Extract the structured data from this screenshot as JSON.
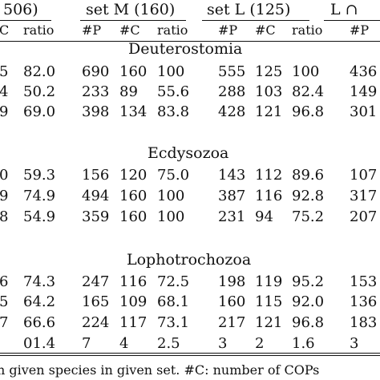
{
  "header": {
    "groups": [
      {
        "label": "506)"
      },
      {
        "label": "set M (160)"
      },
      {
        "label": "set L (125)"
      },
      {
        "label": "L ∩"
      }
    ],
    "subheaders": [
      "C",
      "ratio",
      "#P",
      "#C",
      "ratio",
      "#P",
      "#C",
      "ratio",
      "#P"
    ]
  },
  "sections": [
    {
      "name": "Deuterostomia",
      "rows": [
        [
          "5",
          "82.0",
          "690",
          "160",
          "100",
          "555",
          "125",
          "100",
          "436"
        ],
        [
          "4",
          "50.2",
          "233",
          "89",
          "55.6",
          "288",
          "103",
          "82.4",
          "149"
        ],
        [
          "9",
          "69.0",
          "398",
          "134",
          "83.8",
          "428",
          "121",
          "96.8",
          "301"
        ]
      ]
    },
    {
      "name": "Ecdysozoa",
      "rows": [
        [
          "0",
          "59.3",
          "156",
          "120",
          "75.0",
          "143",
          "112",
          "89.6",
          "107"
        ],
        [
          "9",
          "74.9",
          "494",
          "160",
          "100",
          "387",
          "116",
          "92.8",
          "317"
        ],
        [
          "8",
          "54.9",
          "359",
          "160",
          "100",
          "231",
          "94",
          "75.2",
          "207"
        ]
      ]
    },
    {
      "name": "Lophotrochozoa",
      "rows": [
        [
          "6",
          "74.3",
          "247",
          "116",
          "72.5",
          "198",
          "119",
          "95.2",
          "153"
        ],
        [
          "5",
          "64.2",
          "165",
          "109",
          "68.1",
          "160",
          "115",
          "92.0",
          "136"
        ],
        [
          "7",
          "66.6",
          "224",
          "117",
          "73.1",
          "217",
          "121",
          "96.8",
          "183"
        ],
        [
          "",
          "01.4",
          "7",
          "4",
          "2.5",
          "3",
          "2",
          "1.6",
          "3"
        ]
      ]
    }
  ],
  "caption": "n given species in given set. #C: number of COPs"
}
